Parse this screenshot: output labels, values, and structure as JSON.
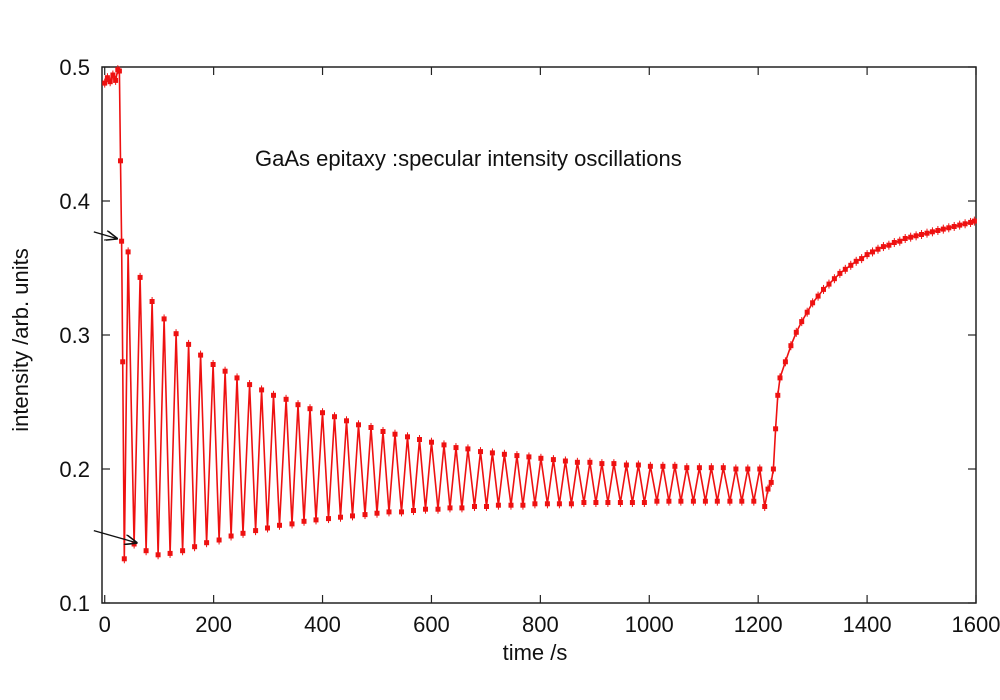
{
  "chart_data": {
    "type": "line",
    "title": "",
    "annotation_text": "GaAs epitaxy :specular intensity oscillations",
    "xlabel": "time /s",
    "ylabel": "intensity /arb. units",
    "xlim": [
      -5,
      1600
    ],
    "ylim": [
      0.1,
      0.5
    ],
    "x_ticks": [
      0,
      200,
      400,
      600,
      800,
      1000,
      1200,
      1400,
      1600
    ],
    "x_tick_labels": [
      "0",
      "200",
      "400",
      "600",
      "800",
      "1000",
      "1200",
      "1400",
      "1600"
    ],
    "y_ticks": [
      0.1,
      0.2,
      0.3,
      0.4,
      0.5
    ],
    "y_tick_labels": [
      "0.1",
      "0.2",
      "0.3",
      "0.4",
      "0.5"
    ],
    "grid": false,
    "legend": "none",
    "series_color": "#ee1111",
    "series": [
      {
        "oscillation_period_s": 22.3,
        "oscillation_start_s": 32,
        "oscillation_end_s": 1218,
        "points": [
          [
            0,
            0.488
          ],
          [
            5,
            0.492
          ],
          [
            10,
            0.489
          ],
          [
            15,
            0.494
          ],
          [
            20,
            0.49
          ],
          [
            24,
            0.498
          ],
          [
            27,
            0.497
          ],
          [
            29,
            0.43
          ],
          [
            31,
            0.37
          ],
          [
            33,
            0.28
          ],
          [
            36,
            0.133
          ],
          [
            43,
            0.362
          ],
          [
            54,
            0.144
          ],
          [
            65,
            0.343
          ],
          [
            76,
            0.139
          ],
          [
            87,
            0.325
          ],
          [
            98,
            0.136
          ],
          [
            109,
            0.312
          ],
          [
            120,
            0.137
          ],
          [
            131,
            0.301
          ],
          [
            143,
            0.139
          ],
          [
            154,
            0.293
          ],
          [
            165,
            0.142
          ],
          [
            176,
            0.285
          ],
          [
            187,
            0.145
          ],
          [
            199,
            0.278
          ],
          [
            210,
            0.147
          ],
          [
            221,
            0.273
          ],
          [
            232,
            0.15
          ],
          [
            243,
            0.268
          ],
          [
            254,
            0.152
          ],
          [
            266,
            0.263
          ],
          [
            277,
            0.154
          ],
          [
            288,
            0.259
          ],
          [
            299,
            0.156
          ],
          [
            310,
            0.255
          ],
          [
            321,
            0.158
          ],
          [
            333,
            0.252
          ],
          [
            344,
            0.159
          ],
          [
            355,
            0.248
          ],
          [
            366,
            0.161
          ],
          [
            377,
            0.245
          ],
          [
            388,
            0.162
          ],
          [
            400,
            0.242
          ],
          [
            411,
            0.163
          ],
          [
            422,
            0.239
          ],
          [
            433,
            0.164
          ],
          [
            444,
            0.236
          ],
          [
            455,
            0.165
          ],
          [
            466,
            0.233
          ],
          [
            478,
            0.166
          ],
          [
            489,
            0.231
          ],
          [
            500,
            0.167
          ],
          [
            511,
            0.228
          ],
          [
            522,
            0.168
          ],
          [
            533,
            0.226
          ],
          [
            545,
            0.168
          ],
          [
            556,
            0.224
          ],
          [
            567,
            0.169
          ],
          [
            578,
            0.222
          ],
          [
            589,
            0.17
          ],
          [
            600,
            0.22
          ],
          [
            612,
            0.17
          ],
          [
            623,
            0.218
          ],
          [
            634,
            0.171
          ],
          [
            645,
            0.216
          ],
          [
            656,
            0.171
          ],
          [
            667,
            0.215
          ],
          [
            679,
            0.172
          ],
          [
            690,
            0.213
          ],
          [
            701,
            0.172
          ],
          [
            712,
            0.212
          ],
          [
            723,
            0.173
          ],
          [
            734,
            0.211
          ],
          [
            746,
            0.173
          ],
          [
            757,
            0.21
          ],
          [
            768,
            0.173
          ],
          [
            779,
            0.209
          ],
          [
            790,
            0.174
          ],
          [
            801,
            0.208
          ],
          [
            813,
            0.174
          ],
          [
            824,
            0.207
          ],
          [
            835,
            0.174
          ],
          [
            846,
            0.206
          ],
          [
            857,
            0.174
          ],
          [
            868,
            0.205
          ],
          [
            880,
            0.175
          ],
          [
            891,
            0.205
          ],
          [
            902,
            0.175
          ],
          [
            913,
            0.204
          ],
          [
            924,
            0.175
          ],
          [
            935,
            0.204
          ],
          [
            947,
            0.175
          ],
          [
            958,
            0.203
          ],
          [
            969,
            0.175
          ],
          [
            980,
            0.203
          ],
          [
            991,
            0.175
          ],
          [
            1002,
            0.202
          ],
          [
            1014,
            0.176
          ],
          [
            1025,
            0.202
          ],
          [
            1036,
            0.176
          ],
          [
            1047,
            0.202
          ],
          [
            1058,
            0.176
          ],
          [
            1069,
            0.201
          ],
          [
            1081,
            0.176
          ],
          [
            1092,
            0.201
          ],
          [
            1103,
            0.176
          ],
          [
            1114,
            0.201
          ],
          [
            1125,
            0.176
          ],
          [
            1136,
            0.201
          ],
          [
            1148,
            0.176
          ],
          [
            1159,
            0.2
          ],
          [
            1170,
            0.176
          ],
          [
            1181,
            0.2
          ],
          [
            1192,
            0.176
          ],
          [
            1203,
            0.2
          ],
          [
            1212,
            0.172
          ],
          [
            1218,
            0.185
          ],
          [
            1224,
            0.19
          ],
          [
            1228,
            0.2
          ],
          [
            1232,
            0.23
          ],
          [
            1236,
            0.255
          ],
          [
            1240,
            0.268
          ],
          [
            1250,
            0.28
          ],
          [
            1260,
            0.292
          ],
          [
            1270,
            0.302
          ],
          [
            1280,
            0.31
          ],
          [
            1290,
            0.317
          ],
          [
            1300,
            0.324
          ],
          [
            1310,
            0.329
          ],
          [
            1320,
            0.334
          ],
          [
            1330,
            0.338
          ],
          [
            1340,
            0.342
          ],
          [
            1350,
            0.346
          ],
          [
            1360,
            0.349
          ],
          [
            1370,
            0.352
          ],
          [
            1380,
            0.355
          ],
          [
            1390,
            0.357
          ],
          [
            1400,
            0.36
          ],
          [
            1410,
            0.362
          ],
          [
            1420,
            0.364
          ],
          [
            1430,
            0.366
          ],
          [
            1440,
            0.367
          ],
          [
            1450,
            0.369
          ],
          [
            1460,
            0.37
          ],
          [
            1470,
            0.372
          ],
          [
            1480,
            0.373
          ],
          [
            1490,
            0.374
          ],
          [
            1500,
            0.375
          ],
          [
            1510,
            0.376
          ],
          [
            1520,
            0.377
          ],
          [
            1530,
            0.378
          ],
          [
            1540,
            0.379
          ],
          [
            1550,
            0.38
          ],
          [
            1560,
            0.381
          ],
          [
            1570,
            0.382
          ],
          [
            1580,
            0.383
          ],
          [
            1590,
            0.384
          ],
          [
            1597,
            0.385
          ]
        ]
      }
    ],
    "arrows": [
      {
        "from": [
          -20,
          0.377
        ],
        "to": [
          22,
          0.372
        ]
      },
      {
        "from": [
          -20,
          0.154
        ],
        "to": [
          58,
          0.145
        ]
      }
    ]
  }
}
